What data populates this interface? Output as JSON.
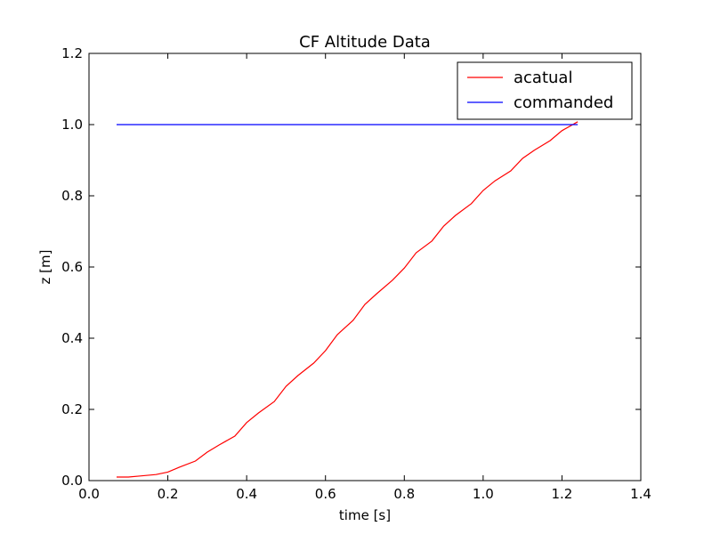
{
  "chart_data": {
    "type": "line",
    "title": "CF Altitude Data",
    "xlabel": "time [s]",
    "ylabel": "z [m]",
    "xlim": [
      0.0,
      1.4
    ],
    "ylim": [
      0.0,
      1.2
    ],
    "xticks": [
      "0.0",
      "0.2",
      "0.4",
      "0.6",
      "0.8",
      "1.0",
      "1.2",
      "1.4"
    ],
    "yticks": [
      "0.0",
      "0.2",
      "0.4",
      "0.6",
      "0.8",
      "1.0",
      "1.2"
    ],
    "grid": false,
    "legend_position": "top-right",
    "series": [
      {
        "name": "acatual",
        "color": "#ff0000",
        "x": [
          0.07,
          0.1,
          0.13,
          0.17,
          0.2,
          0.23,
          0.27,
          0.3,
          0.33,
          0.37,
          0.4,
          0.43,
          0.47,
          0.5,
          0.53,
          0.57,
          0.6,
          0.63,
          0.67,
          0.7,
          0.73,
          0.77,
          0.8,
          0.83,
          0.87,
          0.9,
          0.93,
          0.97,
          1.0,
          1.03,
          1.07,
          1.1,
          1.13,
          1.17,
          1.2,
          1.24
        ],
        "values": [
          0.01,
          0.01,
          0.013,
          0.017,
          0.024,
          0.038,
          0.055,
          0.08,
          0.1,
          0.125,
          0.163,
          0.19,
          0.222,
          0.265,
          0.295,
          0.33,
          0.365,
          0.41,
          0.45,
          0.495,
          0.525,
          0.563,
          0.597,
          0.64,
          0.673,
          0.715,
          0.745,
          0.778,
          0.815,
          0.842,
          0.87,
          0.905,
          0.928,
          0.955,
          0.983,
          1.008
        ]
      },
      {
        "name": "commanded",
        "color": "#0000ff",
        "x": [
          0.07,
          1.24
        ],
        "values": [
          1.0,
          1.0
        ]
      }
    ]
  }
}
